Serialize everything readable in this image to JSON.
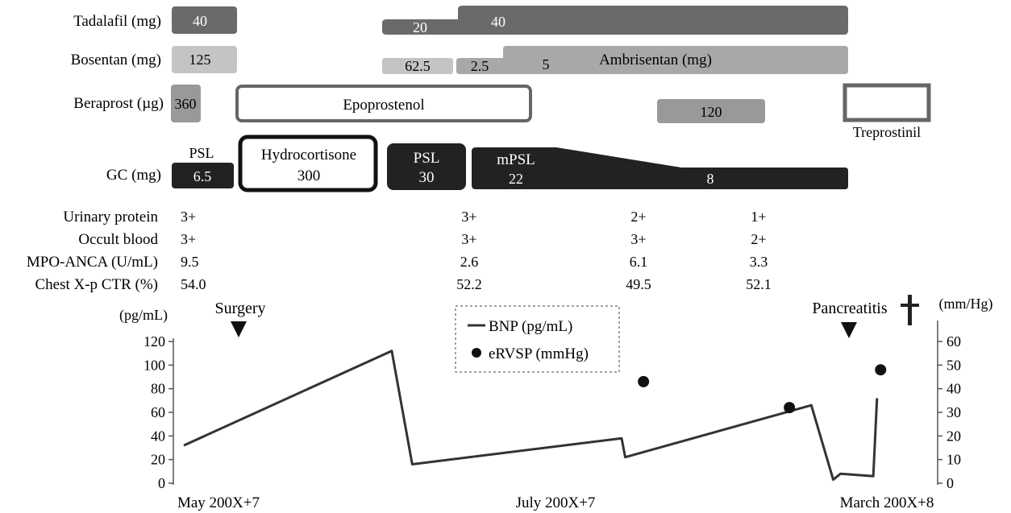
{
  "rows": {
    "tadalafil": "Tadalafil (mg)",
    "bosentan": "Bosentan (mg)",
    "beraprost": "Beraprost (µg)",
    "gc": "GC (mg)"
  },
  "tadalafil_doses": [
    "40",
    "20",
    "40"
  ],
  "bosentan_doses": [
    "125",
    "62.5"
  ],
  "ambrisentan": {
    "name": "Ambrisentan (mg)",
    "doses": [
      "2.5",
      "5"
    ]
  },
  "beraprost_doses": [
    "360",
    "120"
  ],
  "epoprostenol": "Epoprostenol",
  "treprostinil": "Treprostinil",
  "gc": {
    "psl1": {
      "name": "PSL",
      "dose": "6.5"
    },
    "hydrocortisone": {
      "name": "Hydrocortisone",
      "dose": "300"
    },
    "psl2": {
      "name": "PSL",
      "dose": "30"
    },
    "mpsl": {
      "name": "mPSL",
      "dose_start": "22",
      "dose_end": "8"
    }
  },
  "lab_table": {
    "rows": [
      {
        "label": "Urinary protein",
        "values": [
          "3+",
          "3+",
          "2+",
          "1+"
        ]
      },
      {
        "label": "Occult blood",
        "values": [
          "3+",
          "3+",
          "3+",
          "2+"
        ]
      },
      {
        "label": "MPO-ANCA (U/mL)",
        "values": [
          "9.5",
          "2.6",
          "6.1",
          "3.3"
        ]
      },
      {
        "label": "Chest X-p CTR (%)",
        "values": [
          "54.0",
          "52.2",
          "49.5",
          "52.1"
        ]
      }
    ]
  },
  "events": {
    "surgery": "Surgery",
    "pancreatitis": "Pancreatitis"
  },
  "x_labels": [
    "May 200X+7",
    "July 200X+7",
    "March 200X+8"
  ],
  "colors": {
    "dark": "#222222",
    "tadalafil": "#6a6a6a",
    "bosentan_light": "#c4c4c4",
    "ambrisentan": "#a8a8a8",
    "beraprost": "#999999",
    "outline": "#666666"
  },
  "chart_data": {
    "type": "line",
    "x_scale": "time (May 200X+7 – March 200X+8), relative positions",
    "legend": {
      "placement": "top-center",
      "entries": [
        "BNP (pg/mL)",
        "eRVSP (mmHg)"
      ]
    },
    "y_left": {
      "label": "(pg/mL)",
      "range": [
        0,
        120
      ],
      "ticks": [
        "0",
        "20",
        "40",
        "60",
        "80",
        "100",
        "120"
      ]
    },
    "y_right": {
      "label": "(mm/Hg)",
      "range": [
        0,
        60
      ],
      "ticks": [
        "0",
        "10",
        "20",
        "30",
        "40",
        "50",
        "60"
      ]
    },
    "series": [
      {
        "name": "BNP (pg/mL)",
        "kind": "line",
        "axis": "left",
        "x": [
          0,
          0.285,
          0.313,
          0.6,
          0.605,
          0.86,
          0.89,
          0.9,
          0.945,
          0.95
        ],
        "y": [
          32,
          112,
          16,
          38,
          22,
          66,
          3,
          8,
          6,
          72
        ]
      },
      {
        "name": "eRVSP (mmHg)",
        "kind": "scatter",
        "axis": "right",
        "x": [
          0.63,
          0.83,
          0.955
        ],
        "y": [
          43,
          32,
          48
        ]
      }
    ],
    "grid": false
  }
}
